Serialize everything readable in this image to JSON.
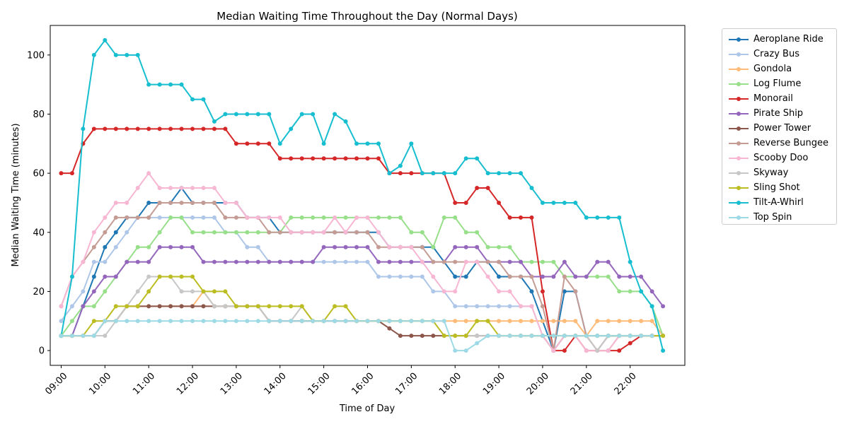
{
  "chart_data": {
    "type": "line",
    "title": "Median Waiting Time Throughout the Day (Normal Days)",
    "xlabel": "Time of Day",
    "ylabel": "Median Waiting Time (minutes)",
    "xlim": [
      "08:45",
      "23:15"
    ],
    "ylim": [
      -5,
      110
    ],
    "x_ticks": [
      "09:00",
      "10:00",
      "11:00",
      "12:00",
      "13:00",
      "14:00",
      "15:00",
      "16:00",
      "17:00",
      "18:00",
      "19:00",
      "20:00",
      "21:00",
      "22:00"
    ],
    "y_ticks": [
      0,
      20,
      40,
      60,
      80,
      100
    ],
    "grid": false,
    "legend_position": "outside top-right",
    "x": [
      "09:00",
      "09:15",
      "09:30",
      "09:45",
      "10:00",
      "10:15",
      "10:30",
      "10:45",
      "11:00",
      "11:15",
      "11:30",
      "11:45",
      "12:00",
      "12:15",
      "12:30",
      "12:45",
      "13:00",
      "13:15",
      "13:30",
      "13:45",
      "14:00",
      "14:15",
      "14:30",
      "14:45",
      "15:00",
      "15:15",
      "15:30",
      "15:45",
      "16:00",
      "16:15",
      "16:30",
      "16:45",
      "17:00",
      "17:15",
      "17:30",
      "17:45",
      "18:00",
      "18:15",
      "18:30",
      "18:45",
      "19:00",
      "19:15",
      "19:30",
      "19:45",
      "20:00",
      "20:15",
      "20:30",
      "20:45",
      "21:00",
      "21:15",
      "21:30",
      "21:45",
      "22:00",
      "22:15",
      "22:30",
      "22:45"
    ],
    "series": [
      {
        "name": "Aeroplane Ride",
        "color": "#1f77b4",
        "values": [
          5,
          5,
          15,
          25,
          35,
          40,
          45,
          45,
          50,
          50,
          50,
          55,
          50,
          50,
          50,
          50,
          50,
          45,
          45,
          45,
          40,
          40,
          40,
          40,
          40,
          40,
          40,
          40,
          40,
          40,
          35,
          35,
          35,
          35,
          35,
          30,
          25,
          25,
          30,
          30,
          25,
          25,
          25,
          20,
          10,
          0,
          20,
          20,
          5,
          5,
          5,
          5,
          5,
          5,
          5,
          null
        ]
      },
      {
        "name": "Crazy Bus",
        "color": "#aec7e8",
        "values": [
          10,
          15,
          20,
          30,
          30,
          35,
          40,
          45,
          45,
          45,
          45,
          45,
          45,
          45,
          45,
          40,
          40,
          35,
          35,
          30,
          30,
          30,
          30,
          30,
          30,
          30,
          30,
          30,
          30,
          25,
          25,
          25,
          25,
          25,
          20,
          20,
          15,
          15,
          15,
          15,
          15,
          15,
          15,
          15,
          5,
          0,
          5,
          5,
          5,
          5,
          5,
          5,
          5,
          5,
          5,
          null
        ]
      },
      {
        "name": "Gondola",
        "color": "#ffbb78",
        "values": [
          5,
          5,
          5,
          5,
          10,
          10,
          15,
          15,
          15,
          15,
          15,
          15,
          15,
          20,
          15,
          15,
          15,
          15,
          15,
          10,
          10,
          10,
          10,
          10,
          10,
          10,
          10,
          10,
          10,
          10,
          10,
          10,
          10,
          10,
          10,
          10,
          10,
          10,
          10,
          10,
          10,
          10,
          10,
          10,
          10,
          10,
          10,
          10,
          5,
          10,
          10,
          10,
          10,
          10,
          10,
          5
        ]
      },
      {
        "name": "Log Flume",
        "color": "#98df8a",
        "values": [
          5,
          10,
          15,
          15,
          20,
          25,
          30,
          35,
          35,
          40,
          45,
          45,
          40,
          40,
          40,
          40,
          40,
          40,
          40,
          40,
          40,
          45,
          45,
          45,
          45,
          45,
          45,
          45,
          45,
          45,
          45,
          45,
          40,
          40,
          35,
          45,
          45,
          40,
          40,
          35,
          35,
          35,
          30,
          30,
          30,
          30,
          25,
          25,
          25,
          25,
          25,
          20,
          20,
          20,
          15,
          5
        ]
      },
      {
        "name": "Monorail",
        "color": "#d62728",
        "values": [
          60,
          60,
          70,
          75,
          75,
          75,
          75,
          75,
          75,
          75,
          75,
          75,
          75,
          75,
          75,
          75,
          70,
          70,
          70,
          70,
          65,
          65,
          65,
          65,
          65,
          65,
          65,
          65,
          65,
          65,
          60,
          60,
          60,
          60,
          60,
          60,
          50,
          50,
          55,
          55,
          50,
          45,
          45,
          45,
          20,
          0,
          0,
          5,
          0,
          0,
          0,
          0,
          2.5,
          5,
          5,
          5
        ]
      },
      {
        "name": "Pirate Ship",
        "color": "#9467bd",
        "values": [
          5,
          5,
          15,
          20,
          25,
          25,
          30,
          30,
          30,
          35,
          35,
          35,
          35,
          30,
          30,
          30,
          30,
          30,
          30,
          30,
          30,
          30,
          30,
          30,
          35,
          35,
          35,
          35,
          35,
          30,
          30,
          30,
          30,
          30,
          30,
          30,
          35,
          35,
          35,
          30,
          30,
          30,
          30,
          25,
          25,
          25,
          30,
          25,
          25,
          30,
          30,
          25,
          25,
          25,
          20,
          15
        ]
      },
      {
        "name": "Power Tower",
        "color": "#8c564b",
        "values": [
          5,
          5,
          5,
          5,
          10,
          10,
          15,
          15,
          15,
          15,
          15,
          15,
          15,
          15,
          15,
          15,
          15,
          15,
          15,
          10,
          10,
          10,
          10,
          10,
          10,
          10,
          10,
          10,
          10,
          10,
          7.5,
          5,
          5,
          5,
          5,
          5,
          5,
          5,
          5,
          5,
          5,
          5,
          5,
          5,
          5,
          0,
          5,
          5,
          5,
          0,
          5,
          5,
          5,
          5,
          5,
          5
        ]
      },
      {
        "name": "Reverse Bungee",
        "color": "#c49c94",
        "values": [
          15,
          25,
          30,
          35,
          40,
          45,
          45,
          45,
          45,
          50,
          50,
          50,
          50,
          50,
          50,
          45,
          45,
          45,
          45,
          40,
          40,
          40,
          40,
          40,
          40,
          40,
          40,
          40,
          40,
          35,
          35,
          35,
          35,
          35,
          30,
          30,
          30,
          30,
          30,
          30,
          30,
          25,
          25,
          25,
          15,
          0,
          25,
          20,
          5,
          0,
          0,
          5,
          5,
          5,
          5,
          5
        ]
      },
      {
        "name": "Scooby Doo",
        "color": "#f7b6d2",
        "values": [
          15,
          25,
          30,
          40,
          45,
          50,
          50,
          55,
          60,
          55,
          55,
          55,
          55,
          55,
          55,
          50,
          50,
          45,
          45,
          45,
          45,
          40,
          40,
          40,
          40,
          45,
          40,
          45,
          45,
          40,
          35,
          35,
          35,
          30,
          25,
          20,
          20,
          30,
          30,
          25,
          20,
          20,
          15,
          15,
          5,
          0,
          5,
          5,
          0,
          0,
          0,
          5,
          5,
          5,
          5,
          5
        ]
      },
      {
        "name": "Skyway",
        "color": "#c7c7c7",
        "values": [
          5,
          5,
          5,
          5,
          5,
          10,
          15,
          20,
          25,
          25,
          25,
          20,
          20,
          20,
          15,
          15,
          15,
          15,
          15,
          10,
          10,
          10,
          15,
          10,
          10,
          10,
          10,
          10,
          10,
          10,
          10,
          10,
          10,
          10,
          10,
          5,
          5,
          5,
          5,
          5,
          5,
          5,
          5,
          5,
          5,
          5,
          5,
          5,
          5,
          0,
          5,
          5,
          5,
          5,
          5,
          5
        ]
      },
      {
        "name": "Sling Shot",
        "color": "#bcbd22",
        "values": [
          5,
          5,
          5,
          10,
          10,
          15,
          15,
          15,
          20,
          25,
          25,
          25,
          25,
          20,
          20,
          20,
          15,
          15,
          15,
          15,
          15,
          15,
          15,
          10,
          10,
          15,
          15,
          10,
          10,
          10,
          10,
          10,
          10,
          10,
          10,
          5,
          5,
          5,
          10,
          10,
          5,
          5,
          5,
          5,
          5,
          5,
          5,
          5,
          5,
          5,
          5,
          5,
          5,
          5,
          5,
          5
        ]
      },
      {
        "name": "Tilt-A-Whirl",
        "color": "#17becf",
        "values": [
          5,
          25,
          75,
          100,
          105,
          100,
          100,
          100,
          90,
          90,
          90,
          90,
          85,
          85,
          77.5,
          80,
          80,
          80,
          80,
          80,
          70,
          75,
          80,
          80,
          70,
          80,
          77.5,
          70,
          70,
          70,
          60,
          62.5,
          70,
          60,
          60,
          60,
          60,
          65,
          65,
          60,
          60,
          60,
          60,
          55,
          50,
          50,
          50,
          50,
          45,
          45,
          45,
          45,
          30,
          20,
          15,
          0
        ]
      },
      {
        "name": "Top Spin",
        "color": "#9edae5",
        "values": [
          5,
          5,
          5,
          5,
          10,
          10,
          10,
          10,
          10,
          10,
          10,
          10,
          10,
          10,
          10,
          10,
          10,
          10,
          10,
          10,
          10,
          10,
          10,
          10,
          10,
          10,
          10,
          10,
          10,
          10,
          10,
          10,
          10,
          10,
          10,
          10,
          0,
          0,
          2.5,
          5,
          5,
          5,
          5,
          5,
          5,
          5,
          5,
          5,
          5,
          5,
          5,
          5,
          5,
          5,
          5,
          null
        ]
      }
    ]
  }
}
